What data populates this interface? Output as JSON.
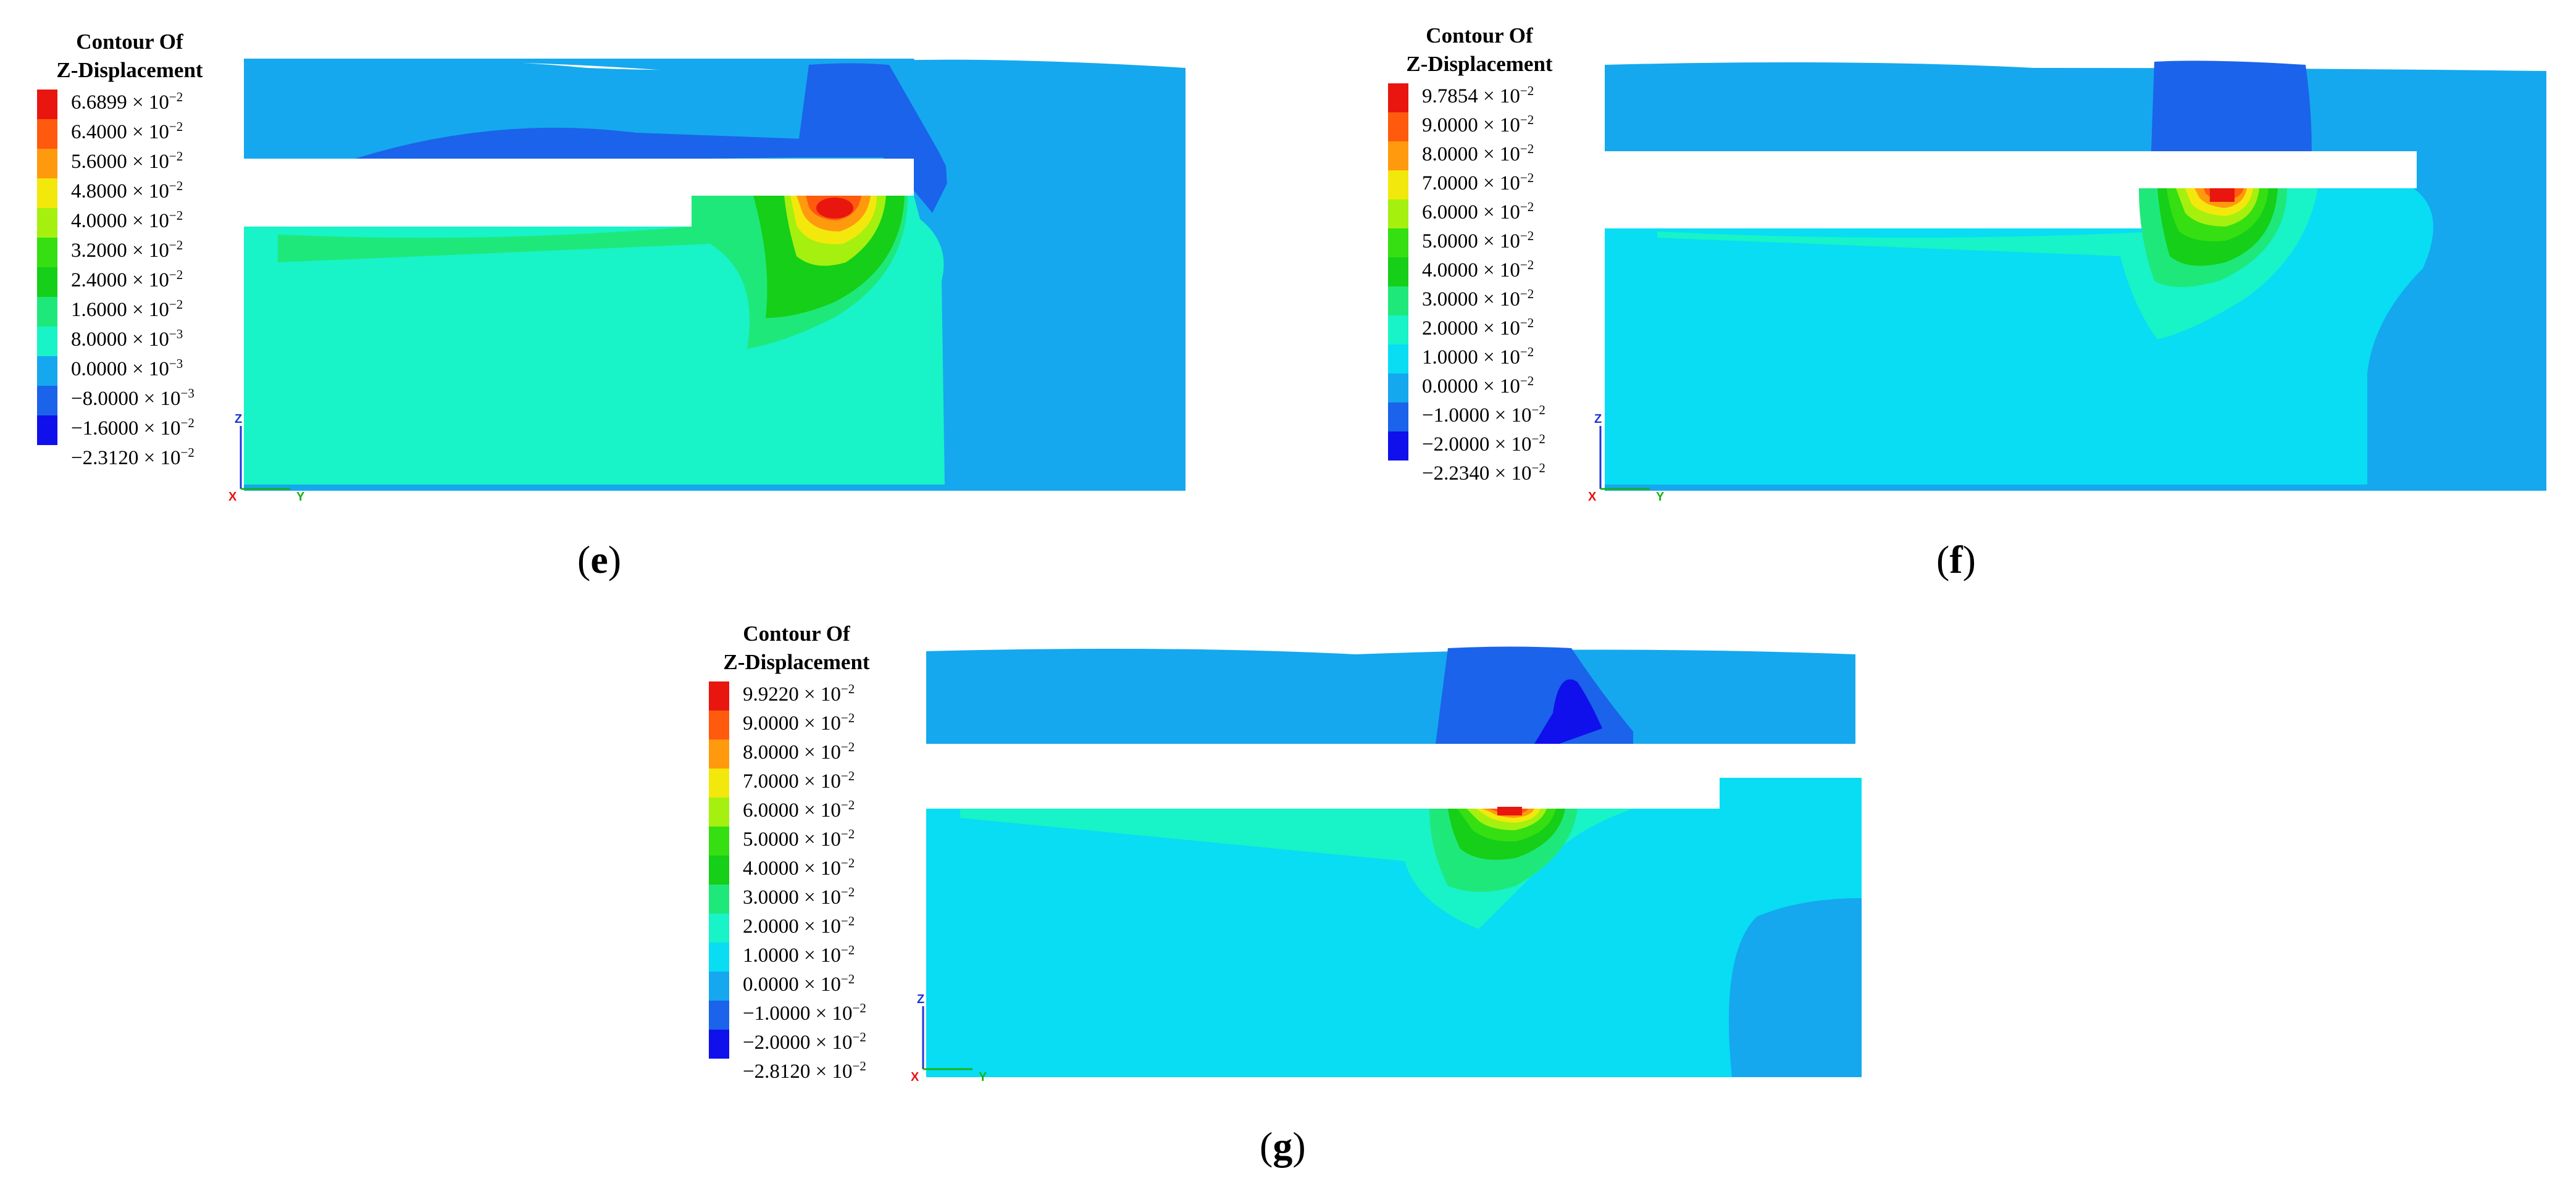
{
  "legend_title_line1": "Contour Of",
  "legend_title_line2": "Z-Displacement",
  "axes": {
    "x": "X",
    "y": "Y",
    "z": "Z"
  },
  "colors": {
    "c13": "#e8160f",
    "c12": "#ff5a0e",
    "c11": "#ff9a0e",
    "c10": "#f3e80c",
    "c9": "#a5f00f",
    "c8": "#35df11",
    "c7": "#15cf18",
    "c6": "#1fe87b",
    "c5": "#18f3c8",
    "c4": "#08ddf3",
    "c3": "#15a8ee",
    "c2": "#1b63ea",
    "c1": "#1010ec"
  },
  "panels": [
    {
      "caption_letter": "e",
      "legend_labels": [
        {
          "mant": "6.6899",
          "exp": "−2"
        },
        {
          "mant": "6.4000",
          "exp": "−2"
        },
        {
          "mant": "5.6000",
          "exp": "−2"
        },
        {
          "mant": "4.8000",
          "exp": "−2"
        },
        {
          "mant": "4.0000",
          "exp": "−2"
        },
        {
          "mant": "3.2000",
          "exp": "−2"
        },
        {
          "mant": "2.4000",
          "exp": "−2"
        },
        {
          "mant": "1.6000",
          "exp": "−2"
        },
        {
          "mant": "8.0000",
          "exp": "−3"
        },
        {
          "mant": "0.0000",
          "exp": "−3"
        },
        {
          "mant": "−8.0000",
          "exp": "−3"
        },
        {
          "mant": "−1.6000",
          "exp": "−2"
        },
        {
          "mant": "−2.3120",
          "exp": "−2"
        }
      ]
    },
    {
      "caption_letter": "f",
      "legend_labels": [
        {
          "mant": "9.7854",
          "exp": "−2"
        },
        {
          "mant": "9.0000",
          "exp": "−2"
        },
        {
          "mant": "8.0000",
          "exp": "−2"
        },
        {
          "mant": "7.0000",
          "exp": "−2"
        },
        {
          "mant": "6.0000",
          "exp": "−2"
        },
        {
          "mant": "5.0000",
          "exp": "−2"
        },
        {
          "mant": "4.0000",
          "exp": "−2"
        },
        {
          "mant": "3.0000",
          "exp": "−2"
        },
        {
          "mant": "2.0000",
          "exp": "−2"
        },
        {
          "mant": "1.0000",
          "exp": "−2"
        },
        {
          "mant": "0.0000",
          "exp": "−2"
        },
        {
          "mant": "−1.0000",
          "exp": "−2"
        },
        {
          "mant": "−2.0000",
          "exp": "−2"
        },
        {
          "mant": "−2.2340",
          "exp": "−2"
        }
      ]
    },
    {
      "caption_letter": "g",
      "legend_labels": [
        {
          "mant": "9.9220",
          "exp": "−2"
        },
        {
          "mant": "9.0000",
          "exp": "−2"
        },
        {
          "mant": "8.0000",
          "exp": "−2"
        },
        {
          "mant": "7.0000",
          "exp": "−2"
        },
        {
          "mant": "6.0000",
          "exp": "−2"
        },
        {
          "mant": "5.0000",
          "exp": "−2"
        },
        {
          "mant": "4.0000",
          "exp": "−2"
        },
        {
          "mant": "3.0000",
          "exp": "−2"
        },
        {
          "mant": "2.0000",
          "exp": "−2"
        },
        {
          "mant": "1.0000",
          "exp": "−2"
        },
        {
          "mant": "0.0000",
          "exp": "−2"
        },
        {
          "mant": "−1.0000",
          "exp": "−2"
        },
        {
          "mant": "−2.0000",
          "exp": "−2"
        },
        {
          "mant": "−2.8120",
          "exp": "−2"
        }
      ]
    }
  ]
}
